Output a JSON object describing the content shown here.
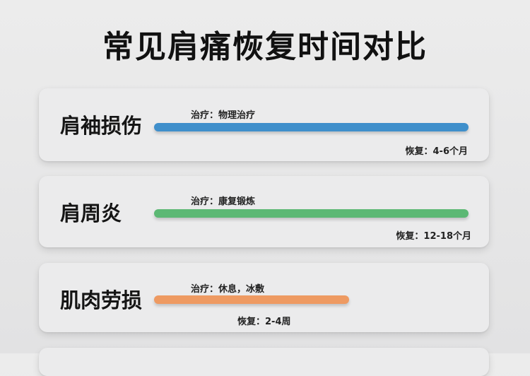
{
  "title": "常见肩痛恢复时间对比",
  "items": [
    {
      "name": "肩袖损伤",
      "treatment": "治疗：物理治疗",
      "recovery": "恢复：4-6个月",
      "color": "#3f8fcb"
    },
    {
      "name": "肩周炎",
      "treatment": "治疗：康复锻炼",
      "recovery": "恢复：12-18个月",
      "color": "#5cb874"
    },
    {
      "name": "肌肉劳损",
      "treatment": "治疗：休息，冰敷",
      "recovery": "恢复：2-4周",
      "color": "#ee9a62"
    }
  ]
}
